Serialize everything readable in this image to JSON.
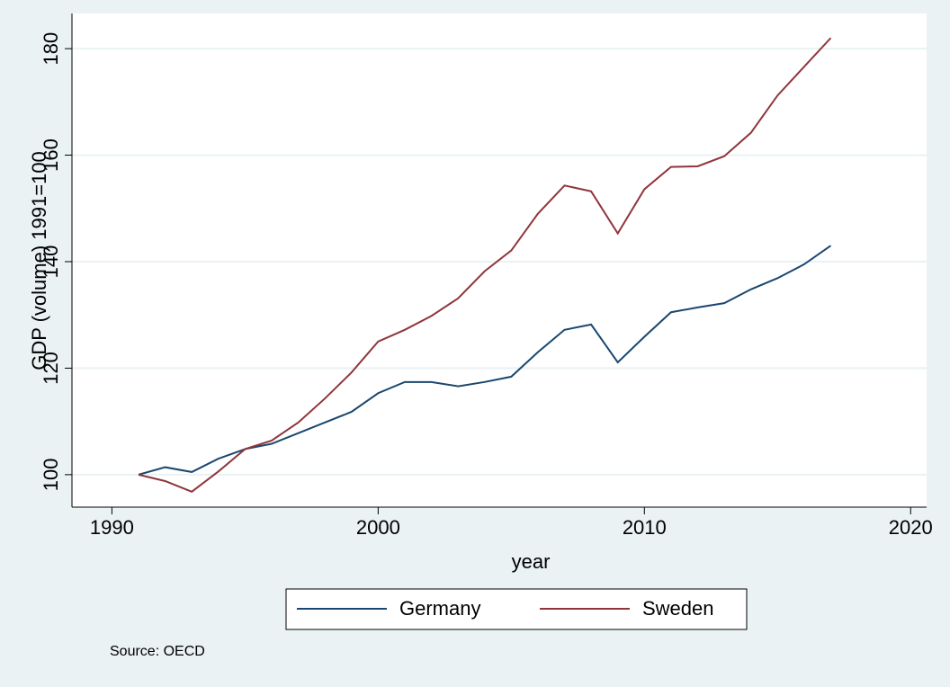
{
  "chart_data": {
    "type": "line",
    "x": [
      1991,
      1992,
      1993,
      1994,
      1995,
      1996,
      1997,
      1998,
      1999,
      2000,
      2001,
      2002,
      2003,
      2004,
      2005,
      2006,
      2007,
      2008,
      2009,
      2010,
      2011,
      2012,
      2013,
      2014,
      2015,
      2016,
      2017
    ],
    "series": [
      {
        "name": "Germany",
        "color": "#1a476f",
        "values": [
          100,
          101.4,
          100.5,
          103,
          104.8,
          105.8,
          107.8,
          109.8,
          111.8,
          115.3,
          117.4,
          117.4,
          116.6,
          117.4,
          118.4,
          123,
          127.2,
          128.2,
          121.1,
          125.9,
          130.5,
          131.4,
          132.2,
          134.8,
          136.9,
          139.5,
          143
        ]
      },
      {
        "name": "Sweden",
        "color": "#90353b",
        "values": [
          100,
          98.8,
          96.8,
          100.6,
          104.8,
          106.4,
          109.8,
          114.3,
          119.2,
          125,
          127.2,
          129.8,
          133.1,
          138.2,
          142.1,
          149,
          154.3,
          153.2,
          145.3,
          153.6,
          157.8,
          157.9,
          159.8,
          164.2,
          171.2,
          176.6,
          182
        ]
      }
    ],
    "xlabel": "year",
    "ylabel": "GDP (volume) 1991=100",
    "xlim": [
      1988.5,
      2020.6
    ],
    "xticks": [
      1990,
      2000,
      2010,
      2020
    ],
    "ylim": [
      93.9,
      186.6
    ],
    "yticks": [
      100,
      120,
      140,
      160,
      180
    ],
    "grid": true,
    "legend": "bottom",
    "note": "Source: OECD"
  }
}
